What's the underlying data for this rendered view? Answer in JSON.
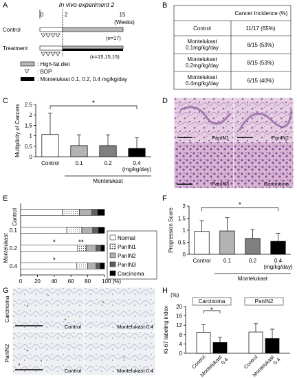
{
  "panel_labels": {
    "A": "A",
    "B": "B",
    "C": "C",
    "D": "D",
    "E": "E",
    "F": "F",
    "G": "G",
    "H": "H"
  },
  "panelA": {
    "title": "In vivo experiment 2",
    "week_ticks": [
      "0",
      "2",
      "15"
    ],
    "weeks_label": "(Weeks)",
    "groups": [
      {
        "label": "Control",
        "n": "(n=17)"
      },
      {
        "label": "Treatment",
        "n": "(n=15,15,15)"
      }
    ],
    "legend": [
      {
        "label": ": High-fat diet",
        "color": "#b8b8b8"
      },
      {
        "label": ": BOP",
        "symbol": "triangle"
      },
      {
        "label": ": Montelukast  0.1, 0.2, 0.4 mg/kg/day",
        "color": "#000000"
      }
    ]
  },
  "panelB": {
    "header": [
      "",
      "Cancer Incidence (%)"
    ],
    "rows": [
      [
        "Control",
        "11/17 (65%)"
      ],
      [
        "Montelukast\n0.1mg/kg/day",
        "8/15 (53%)"
      ],
      [
        "Montelukast\n0.2mg/kg/day",
        "8/15 (53%)"
      ],
      [
        "Montelukast\n0.4mg/kg/day",
        "6/15 (40%)"
      ]
    ]
  },
  "panelD": {
    "labels": [
      "PanIN1",
      "PanIN2",
      "PanIN3",
      "Carcinoma"
    ]
  },
  "panelG": {
    "row_labels": [
      "Carcinoma",
      "PanIN2"
    ],
    "col_labels": [
      "Control",
      "Montelukast 0.4"
    ]
  },
  "chart_data": [
    {
      "panel": "C",
      "type": "bar",
      "ylabel": "Multiplicity of Cancers",
      "ylim": [
        0,
        2.5
      ],
      "yticks": [
        "0",
        "0.5",
        "1",
        "1.5",
        "2",
        "2.5"
      ],
      "categories": [
        "Control",
        "0.1",
        "0.2",
        "0.4\n(mg/kg/day)"
      ],
      "group_label": "Montelukast",
      "values": [
        1.06,
        0.53,
        0.53,
        0.4
      ],
      "errors": [
        1.03,
        0.52,
        0.52,
        0.51
      ],
      "colors": [
        "#ffffff",
        "#b3b3b3",
        "#808080",
        "#000000"
      ],
      "significance": [
        {
          "from": 0,
          "to": 3,
          "label": "*"
        }
      ]
    },
    {
      "panel": "E",
      "type": "bar",
      "orientation": "horizontal-stacked",
      "categories": [
        "Control",
        "0.1",
        "0.2",
        "0.4"
      ],
      "group_label": "Montelukast",
      "xlim": [
        0,
        100
      ],
      "xticks": [
        "0",
        "20",
        "40",
        "60",
        "80",
        "100 (%)"
      ],
      "series": [
        {
          "name": "Normal",
          "values": [
            50,
            55,
            68,
            67
          ]
        },
        {
          "name": "PanIN1",
          "values": [
            20,
            18,
            10,
            13
          ]
        },
        {
          "name": "PanIN2",
          "values": [
            15,
            13,
            12,
            10
          ]
        },
        {
          "name": "PanIN3",
          "values": [
            7,
            7,
            6,
            5
          ]
        },
        {
          "name": "Carcinoma",
          "values": [
            8,
            7,
            4,
            5
          ]
        }
      ],
      "significance": [
        {
          "row": 2,
          "at": 40,
          "label": "*"
        },
        {
          "row": 2,
          "at": 72,
          "label": "**"
        },
        {
          "row": 3,
          "at": 40,
          "label": "*"
        }
      ]
    },
    {
      "panel": "F",
      "type": "bar",
      "ylabel": "Progression Score",
      "ylim": [
        0,
        2
      ],
      "yticks": [
        "0",
        "0.5",
        "1",
        "1.5",
        "2"
      ],
      "categories": [
        "Control",
        "0.1",
        "0.2",
        "0.4\n(mg/kg/day)"
      ],
      "group_label": "Montelukast",
      "values": [
        0.95,
        0.97,
        0.66,
        0.54
      ],
      "errors": [
        0.45,
        0.55,
        0.37,
        0.33
      ],
      "colors": [
        "#ffffff",
        "#b3b3b3",
        "#808080",
        "#000000"
      ],
      "significance": [
        {
          "from": 0,
          "to": 3,
          "label": "*"
        }
      ]
    },
    {
      "panel": "H",
      "type": "bar",
      "ylabel": "Ki-67 labeling index",
      "yunit": "(%)",
      "ylim": [
        0,
        20
      ],
      "yticks": [
        "0",
        "4",
        "8",
        "12",
        "16",
        "20"
      ],
      "groups": [
        {
          "name": "Carcinoma",
          "categories": [
            "Control",
            "Montelukast\n0.4"
          ],
          "values": [
            9.0,
            4.6
          ],
          "errors": [
            3.2,
            2.2
          ]
        },
        {
          "name": "PanIN2",
          "categories": [
            "Control",
            "Montelukast\n0.4"
          ],
          "values": [
            9.1,
            6.3
          ],
          "errors": [
            3.6,
            4.0
          ]
        }
      ],
      "colors": [
        "#ffffff",
        "#000000"
      ],
      "significance": [
        {
          "group": 0,
          "label": "*"
        }
      ]
    }
  ]
}
